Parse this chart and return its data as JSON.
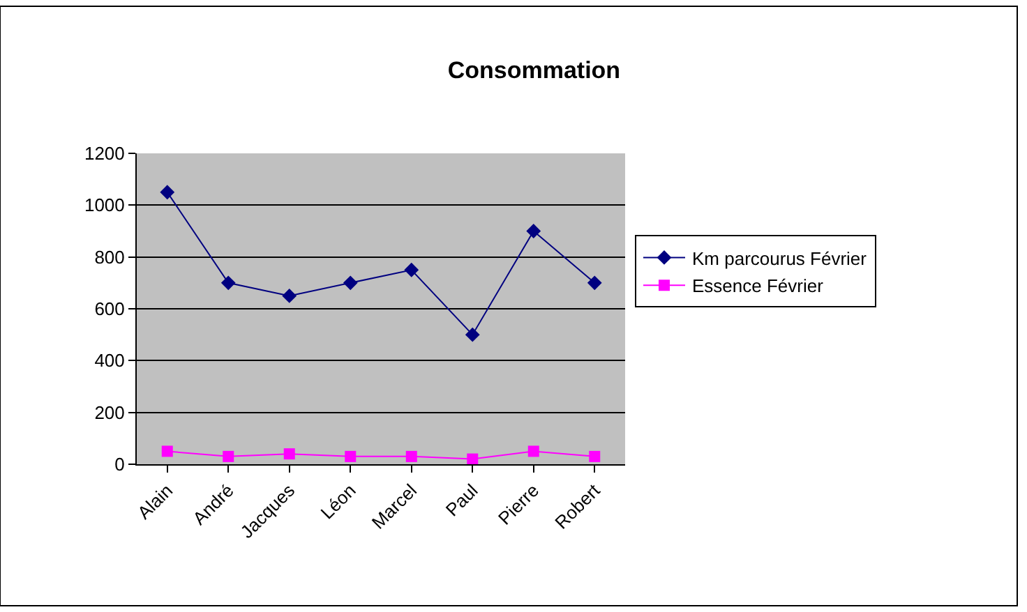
{
  "chart_data": {
    "type": "line",
    "title": "Consommation",
    "categories": [
      "Alain",
      "André",
      "Jacques",
      "Léon",
      "Marcel",
      "Paul",
      "Pierre",
      "Robert"
    ],
    "series": [
      {
        "name": "Km parcourus Février",
        "color": "#000080",
        "marker": "diamond",
        "values": [
          1050,
          700,
          650,
          700,
          750,
          500,
          900,
          700
        ]
      },
      {
        "name": "Essence Février",
        "color": "#ff00ff",
        "marker": "square",
        "values": [
          50,
          30,
          40,
          30,
          30,
          20,
          50,
          30
        ]
      }
    ],
    "ylim": [
      0,
      1200
    ],
    "yticks": [
      0,
      200,
      400,
      600,
      800,
      1000,
      1200
    ],
    "grid": "y",
    "legend": "right"
  }
}
